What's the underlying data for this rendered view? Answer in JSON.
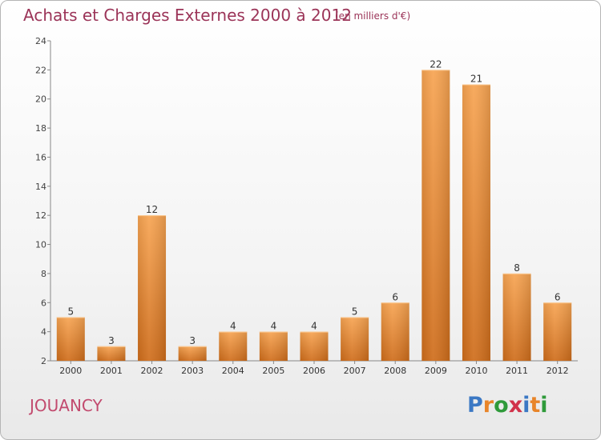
{
  "header": {
    "title": "Achats et Charges Externes 2000 à 2012",
    "subtitle": "(en milliers d'€)"
  },
  "footer": {
    "commune": "JOUANCY",
    "logo_letters": [
      {
        "char": "P",
        "color": "#3b78c4"
      },
      {
        "char": "r",
        "color": "#e8852a"
      },
      {
        "char": "o",
        "color": "#2f9a3a"
      },
      {
        "char": "x",
        "color": "#d1324a"
      },
      {
        "char": "i",
        "color": "#3b78c4"
      },
      {
        "char": "t",
        "color": "#e8852a"
      },
      {
        "char": "i",
        "color": "#2f9a3a"
      }
    ]
  },
  "chart_data": {
    "type": "bar",
    "title": "Achats et Charges Externes 2000 à 2012",
    "subtitle": "(en milliers d'€)",
    "categories": [
      "2000",
      "2001",
      "2002",
      "2003",
      "2004",
      "2005",
      "2006",
      "2007",
      "2008",
      "2009",
      "2010",
      "2011",
      "2012"
    ],
    "values": [
      5,
      3,
      12,
      3,
      4,
      4,
      4,
      5,
      6,
      22,
      21,
      8,
      6
    ],
    "ylim": [
      2,
      24
    ],
    "yticks": [
      2,
      4,
      6,
      8,
      10,
      12,
      14,
      16,
      18,
      20,
      22,
      24
    ],
    "grid": false,
    "bar_color_top": "#f7a452",
    "bar_color_bottom": "#cf6d1b"
  }
}
